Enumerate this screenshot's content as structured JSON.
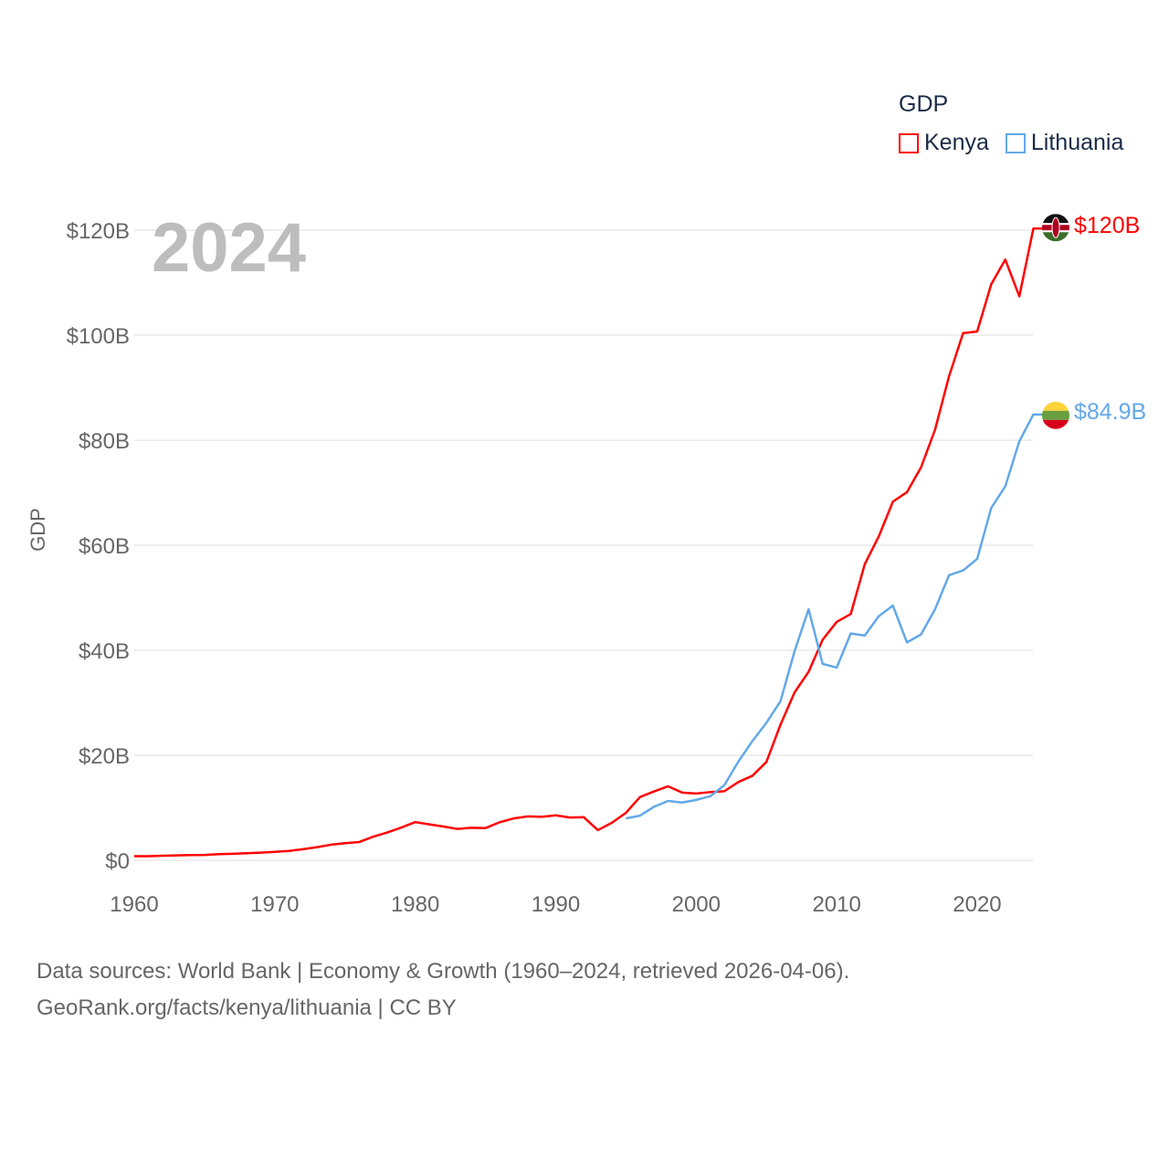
{
  "chart_data": {
    "type": "line",
    "title": "GDP",
    "ylabel": "GDP",
    "xlabel": "",
    "year_display": "2024",
    "xlim": [
      1960,
      2024
    ],
    "ylim": [
      0,
      120
    ],
    "x_ticks": [
      "1960",
      "1970",
      "1980",
      "1990",
      "2000",
      "2010",
      "2020"
    ],
    "y_ticks": [
      "$0",
      "$20B",
      "$40B",
      "$60B",
      "$80B",
      "$100B",
      "$120B"
    ],
    "y_tick_values": [
      0,
      20,
      40,
      60,
      80,
      100,
      120
    ],
    "grid": true,
    "legend_position": "top-right",
    "series": [
      {
        "name": "Kenya",
        "color": "#ff0000",
        "end_label": "$120B",
        "start_year": 1960,
        "values": [
          0.79,
          0.79,
          0.87,
          0.93,
          0.99,
          1.02,
          1.18,
          1.24,
          1.35,
          1.46,
          1.6,
          1.78,
          2.11,
          2.5,
          2.97,
          3.26,
          3.47,
          4.49,
          5.3,
          6.23,
          7.27,
          6.85,
          6.43,
          5.98,
          6.19,
          6.14,
          7.24,
          7.97,
          8.36,
          8.28,
          8.57,
          8.15,
          8.21,
          5.75,
          7.15,
          9.05,
          12.05,
          13.12,
          14.09,
          12.9,
          12.71,
          12.99,
          13.15,
          14.9,
          16.1,
          18.74,
          25.83,
          31.96,
          35.9,
          42.0,
          45.4,
          46.9,
          56.4,
          61.7,
          68.3,
          70.1,
          74.8,
          82.0,
          92.2,
          100.4,
          100.7,
          109.7,
          114.4,
          107.4,
          120.3
        ]
      },
      {
        "name": "Lithuania",
        "color": "#63a8e8",
        "end_label": "$84.9B",
        "start_year": 1995,
        "values": [
          8.0,
          8.5,
          10.2,
          11.3,
          11.0,
          11.5,
          12.2,
          14.3,
          18.8,
          22.7,
          26.2,
          30.3,
          39.8,
          47.8,
          37.4,
          36.7,
          43.2,
          42.8,
          46.5,
          48.5,
          41.5,
          43.0,
          47.8,
          54.3,
          55.2,
          57.4,
          67.1,
          71.2,
          79.8,
          84.9
        ]
      }
    ]
  },
  "footer": {
    "line1": "Data sources: World Bank | Economy & Growth (1960–2024, retrieved 2026-04-06).",
    "line2": "GeoRank.org/facts/kenya/lithuania | CC BY"
  }
}
